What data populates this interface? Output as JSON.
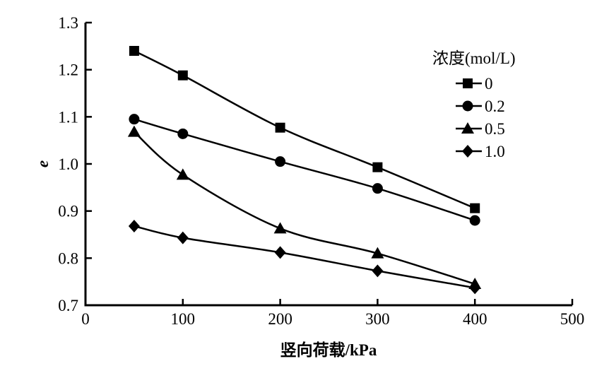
{
  "chart_data": {
    "type": "line",
    "title": "",
    "xlabel": "竖向荷载/kPa",
    "ylabel": "e",
    "xlim": [
      0,
      500
    ],
    "ylim": [
      0.7,
      1.3
    ],
    "xticks": [
      "0",
      "100",
      "200",
      "300",
      "400",
      "500"
    ],
    "yticks": [
      "0.7",
      "0.8",
      "0.9",
      "1.0",
      "1.1",
      "1.2",
      "1.3"
    ],
    "grid": false,
    "legend_title": "浓度(mol/L)",
    "legend_position": "top-right",
    "x": [
      50,
      100,
      200,
      300,
      400
    ],
    "series": [
      {
        "name": "0",
        "marker": "square",
        "values": [
          1.24,
          1.188,
          1.077,
          0.993,
          0.906
        ]
      },
      {
        "name": "0.2",
        "marker": "circle",
        "values": [
          1.095,
          1.064,
          1.005,
          0.948,
          0.88
        ]
      },
      {
        "name": "0.5",
        "marker": "triangle",
        "values": [
          1.068,
          0.977,
          0.863,
          0.81,
          0.745
        ]
      },
      {
        "name": "1.0",
        "marker": "diamond",
        "values": [
          0.868,
          0.843,
          0.812,
          0.773,
          0.737
        ]
      }
    ],
    "color": "#000000"
  }
}
